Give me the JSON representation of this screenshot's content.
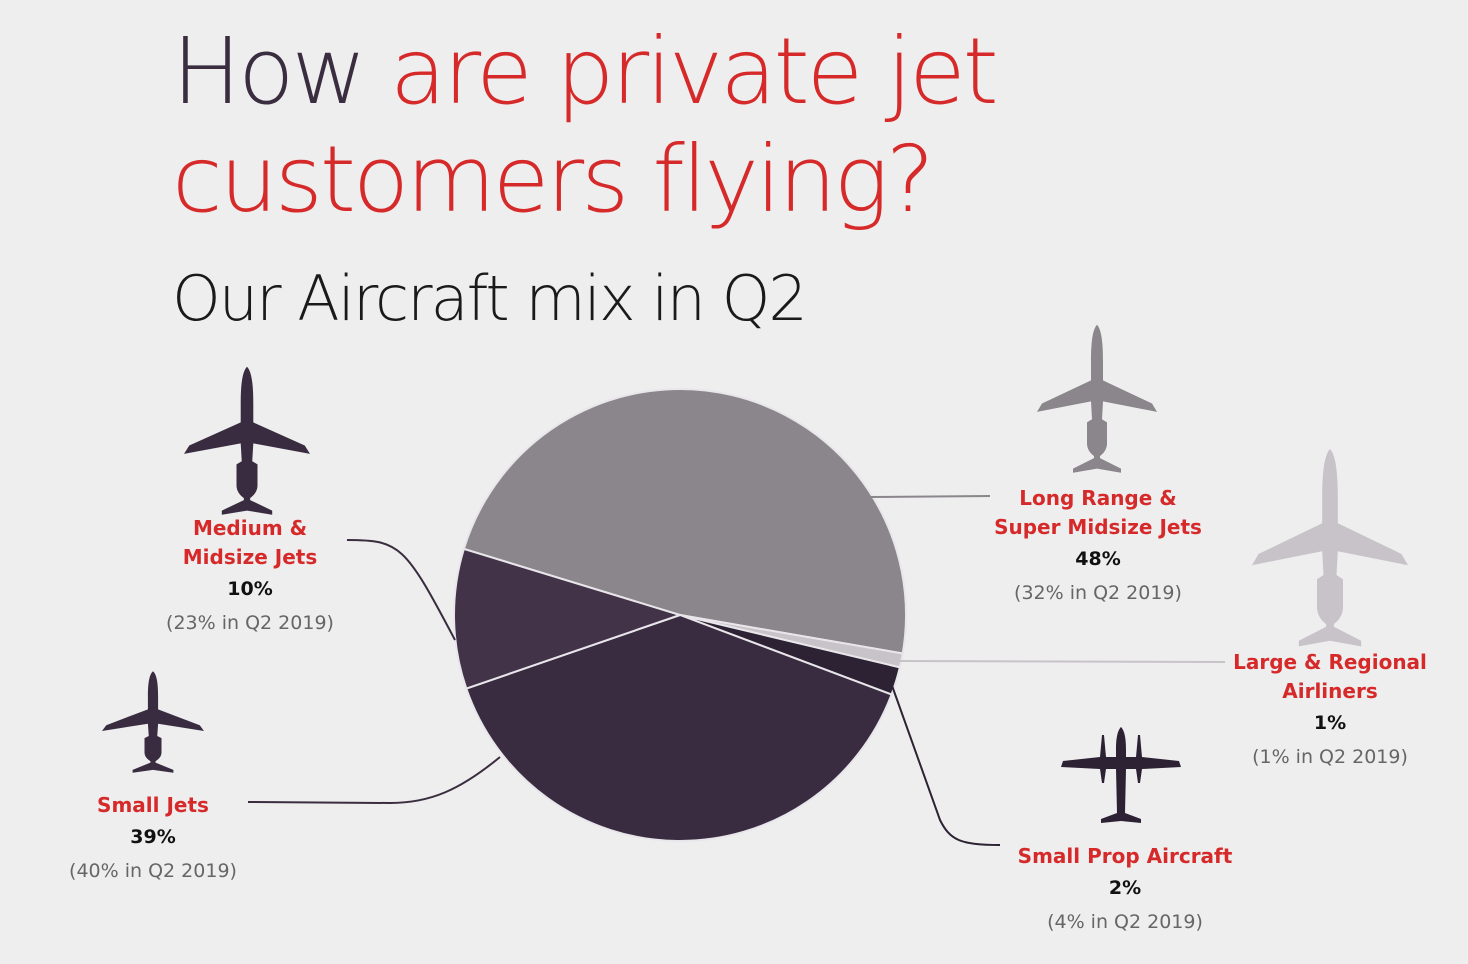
{
  "title": {
    "part1": "How ",
    "part2": "are private jet customers flying?"
  },
  "subtitle": "Our Aircraft mix in Q2",
  "chart_data": {
    "type": "pie",
    "title": "Our Aircraft mix in Q2",
    "slices": [
      {
        "name": "Long Range & Super Midsize Jets",
        "name_lines": [
          "Long Range &",
          "Super Midsize Jets"
        ],
        "value": 48,
        "value_label": "48%",
        "previous": "(32% in Q2 2019)",
        "color": "#8a868b",
        "icon": "jet-icon"
      },
      {
        "name": "Large & Regional Airliners",
        "name_lines": [
          "Large & Regional",
          "Airliners"
        ],
        "value": 1,
        "value_label": "1%",
        "previous": "(1% in Q2 2019)",
        "color": "#c7c3c8",
        "icon": "airliner-icon"
      },
      {
        "name": "Small Prop Aircraft",
        "name_lines": [
          "Small Prop Aircraft"
        ],
        "value": 2,
        "value_label": "2%",
        "previous": "(4% in Q2 2019)",
        "color": "#2c2233",
        "icon": "prop-plane-icon"
      },
      {
        "name": "Small Jets",
        "name_lines": [
          "Small Jets"
        ],
        "value": 39,
        "value_label": "39%",
        "previous": "(40% in Q2 2019)",
        "color": "#3a2c40",
        "icon": "jet-icon"
      },
      {
        "name": "Medium & Midsize Jets",
        "name_lines": [
          "Medium &",
          "Midsize Jets"
        ],
        "value": 10,
        "value_label": "10%",
        "previous": "(23% in Q2 2019)",
        "color": "#433349",
        "icon": "jet-icon"
      }
    ]
  }
}
